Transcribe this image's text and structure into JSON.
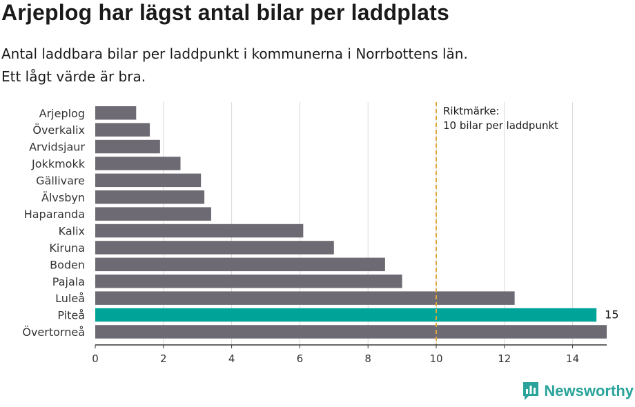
{
  "title": "Arjeplog har lägst antal bilar per laddplats",
  "subtitle_line1": "Antal laddbara bilar per laddpunkt i kommunerna i Norrbottens län.",
  "subtitle_line2": "Ett lågt värde är bra.",
  "logo_text": "Newsworthy",
  "colors": {
    "bar": "#6d6a73",
    "highlight": "#00a397",
    "reference": "#e0a73d",
    "grid": "#d9d9d9"
  },
  "chart_data": {
    "type": "bar",
    "orientation": "horizontal",
    "categories": [
      "Arjeplog",
      "Överkalix",
      "Arvidsjaur",
      "Jokkmokk",
      "Gällivare",
      "Älvsbyn",
      "Haparanda",
      "Kalix",
      "Kiruna",
      "Boden",
      "Pajala",
      "Luleå",
      "Piteå",
      "Övertorneå"
    ],
    "values": [
      1.2,
      1.6,
      1.9,
      2.5,
      3.1,
      3.2,
      3.4,
      6.1,
      7.0,
      8.5,
      9.0,
      12.3,
      14.7,
      15.0
    ],
    "highlight_category": "Piteå",
    "highlight_label": "15",
    "xlim": [
      0,
      15
    ],
    "xticks": [
      0,
      2,
      4,
      6,
      8,
      10,
      12,
      14
    ],
    "reference_line": {
      "value": 10,
      "label_line1": "Riktmärke:",
      "label_line2": "10 bilar per laddpunkt"
    },
    "xlabel": "",
    "ylabel": ""
  }
}
